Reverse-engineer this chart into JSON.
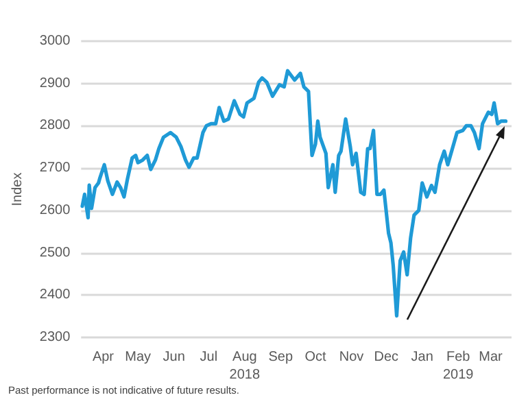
{
  "chart_data": {
    "type": "line",
    "ylabel": "Index",
    "x": [
      "2018-03-28",
      "2018-03-30",
      "2018-04-02",
      "2018-04-03",
      "2018-04-05",
      "2018-04-08",
      "2018-04-11",
      "2018-04-12",
      "2018-04-16",
      "2018-04-19",
      "2018-04-23",
      "2018-04-27",
      "2018-04-30",
      "2018-05-03",
      "2018-05-06",
      "2018-05-10",
      "2018-05-13",
      "2018-05-15",
      "2018-05-19",
      "2018-05-23",
      "2018-05-26",
      "2018-05-30",
      "2018-06-02",
      "2018-06-06",
      "2018-06-12",
      "2018-06-17",
      "2018-06-21",
      "2018-06-25",
      "2018-06-28",
      "2018-07-02",
      "2018-07-05",
      "2018-07-10",
      "2018-07-13",
      "2018-07-17",
      "2018-07-21",
      "2018-07-24",
      "2018-07-28",
      "2018-08-01",
      "2018-08-06",
      "2018-08-11",
      "2018-08-14",
      "2018-08-17",
      "2018-08-23",
      "2018-08-27",
      "2018-08-30",
      "2018-09-03",
      "2018-09-08",
      "2018-09-14",
      "2018-09-18",
      "2018-09-21",
      "2018-09-27",
      "2018-10-02",
      "2018-10-05",
      "2018-10-09",
      "2018-10-12",
      "2018-10-15",
      "2018-10-17",
      "2018-10-19",
      "2018-10-24",
      "2018-10-26",
      "2018-10-30",
      "2018-11-01",
      "2018-11-04",
      "2018-11-06",
      "2018-11-10",
      "2018-11-14",
      "2018-11-16",
      "2018-11-19",
      "2018-11-23",
      "2018-11-26",
      "2018-11-29",
      "2018-12-01",
      "2018-12-04",
      "2018-12-07",
      "2018-12-10",
      "2018-12-13",
      "2018-12-17",
      "2018-12-19",
      "2018-12-21",
      "2018-12-24",
      "2018-12-27",
      "2018-12-30",
      "2019-01-02",
      "2019-01-05",
      "2019-01-08",
      "2019-01-12",
      "2019-01-15",
      "2019-01-19",
      "2019-01-23",
      "2019-01-26",
      "2019-01-30",
      "2019-02-03",
      "2019-02-06",
      "2019-02-10",
      "2019-02-14",
      "2019-02-19",
      "2019-02-22",
      "2019-02-26",
      "2019-03-01",
      "2019-03-05",
      "2019-03-08",
      "2019-03-13",
      "2019-03-16",
      "2019-03-18",
      "2019-03-21",
      "2019-03-24",
      "2019-03-28"
    ],
    "series": [
      {
        "color": "#1f9ad6",
        "values": [
          2610,
          2638,
          2583,
          2660,
          2605,
          2654,
          2665,
          2675,
          2708,
          2670,
          2638,
          2667,
          2654,
          2632,
          2675,
          2724,
          2730,
          2713,
          2719,
          2730,
          2697,
          2719,
          2746,
          2773,
          2784,
          2773,
          2751,
          2719,
          2702,
          2724,
          2724,
          2784,
          2800,
          2805,
          2805,
          2843,
          2811,
          2816,
          2859,
          2827,
          2821,
          2854,
          2865,
          2903,
          2913,
          2903,
          2870,
          2897,
          2892,
          2930,
          2908,
          2924,
          2892,
          2881,
          2730,
          2757,
          2811,
          2773,
          2735,
          2654,
          2708,
          2643,
          2730,
          2740,
          2816,
          2751,
          2708,
          2735,
          2643,
          2638,
          2746,
          2746,
          2789,
          2638,
          2638,
          2648,
          2546,
          2524,
          2470,
          2351,
          2481,
          2502,
          2448,
          2535,
          2589,
          2600,
          2665,
          2632,
          2659,
          2643,
          2708,
          2740,
          2708,
          2746,
          2784,
          2789,
          2800,
          2800,
          2784,
          2746,
          2805,
          2832,
          2827,
          2854,
          2805,
          2811,
          2811
        ]
      }
    ],
    "xlim": [
      "2018-03-27",
      "2019-04-02"
    ],
    "xticks": [
      {
        "value": "2018-04-15",
        "label": "Apr"
      },
      {
        "value": "2018-05-15",
        "label": "May"
      },
      {
        "value": "2018-06-15",
        "label": "Jun"
      },
      {
        "value": "2018-07-15",
        "label": "Jul"
      },
      {
        "value": "2018-08-15",
        "label": "Aug\n2018"
      },
      {
        "value": "2018-09-15",
        "label": "Sep"
      },
      {
        "value": "2018-10-15",
        "label": "Oct"
      },
      {
        "value": "2018-11-15",
        "label": "Nov"
      },
      {
        "value": "2018-12-15",
        "label": "Dec"
      },
      {
        "value": "2019-01-15",
        "label": "Jan"
      },
      {
        "value": "2019-02-15",
        "label": "Feb\n2019"
      },
      {
        "value": "2019-03-15",
        "label": "Mar"
      }
    ],
    "ylim": [
      2300,
      3000
    ],
    "yticks": [
      2300,
      2400,
      2500,
      2600,
      2700,
      2800,
      2900,
      3000
    ],
    "grid": "y",
    "marker": "none",
    "line_style": "solid",
    "annotations": [
      "Past performance is not indicative of future results."
    ]
  }
}
